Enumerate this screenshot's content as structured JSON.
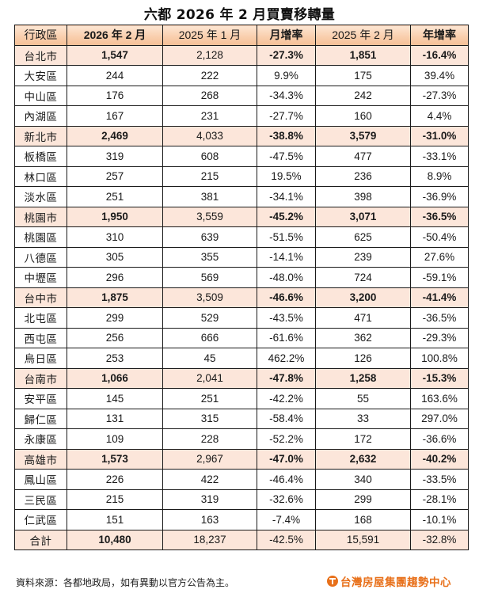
{
  "title": "六都 2026 年 2 月買賣移轉量",
  "table": {
    "headers": [
      "行政區",
      "2026 年 2 月",
      "2025 年 1 月",
      "月增率",
      "2025 年 2 月",
      "年增率"
    ],
    "rows": [
      {
        "type": "city",
        "cells": [
          "台北市",
          "1,547",
          "2,128",
          "-27.3%",
          "1,851",
          "-16.4%"
        ]
      },
      {
        "type": "district",
        "cells": [
          "大安區",
          "244",
          "222",
          "9.9%",
          "175",
          "39.4%"
        ]
      },
      {
        "type": "district",
        "cells": [
          "中山區",
          "176",
          "268",
          "-34.3%",
          "242",
          "-27.3%"
        ]
      },
      {
        "type": "district",
        "cells": [
          "內湖區",
          "167",
          "231",
          "-27.7%",
          "160",
          "4.4%"
        ]
      },
      {
        "type": "city",
        "cells": [
          "新北市",
          "2,469",
          "4,033",
          "-38.8%",
          "3,579",
          "-31.0%"
        ]
      },
      {
        "type": "district",
        "cells": [
          "板橋區",
          "319",
          "608",
          "-47.5%",
          "477",
          "-33.1%"
        ]
      },
      {
        "type": "district",
        "cells": [
          "林口區",
          "257",
          "215",
          "19.5%",
          "236",
          "8.9%"
        ]
      },
      {
        "type": "district",
        "cells": [
          "淡水區",
          "251",
          "381",
          "-34.1%",
          "398",
          "-36.9%"
        ]
      },
      {
        "type": "city",
        "cells": [
          "桃園市",
          "1,950",
          "3,559",
          "-45.2%",
          "3,071",
          "-36.5%"
        ]
      },
      {
        "type": "district",
        "cells": [
          "桃園區",
          "310",
          "639",
          "-51.5%",
          "625",
          "-50.4%"
        ]
      },
      {
        "type": "district",
        "cells": [
          "八德區",
          "305",
          "355",
          "-14.1%",
          "239",
          "27.6%"
        ]
      },
      {
        "type": "district",
        "cells": [
          "中壢區",
          "296",
          "569",
          "-48.0%",
          "724",
          "-59.1%"
        ]
      },
      {
        "type": "city",
        "cells": [
          "台中市",
          "1,875",
          "3,509",
          "-46.6%",
          "3,200",
          "-41.4%"
        ]
      },
      {
        "type": "district",
        "cells": [
          "北屯區",
          "299",
          "529",
          "-43.5%",
          "471",
          "-36.5%"
        ]
      },
      {
        "type": "district",
        "cells": [
          "西屯區",
          "256",
          "666",
          "-61.6%",
          "362",
          "-29.3%"
        ]
      },
      {
        "type": "district",
        "cells": [
          "烏日區",
          "253",
          "45",
          "462.2%",
          "126",
          "100.8%"
        ]
      },
      {
        "type": "city",
        "cells": [
          "台南市",
          "1,066",
          "2,041",
          "-47.8%",
          "1,258",
          "-15.3%"
        ]
      },
      {
        "type": "district",
        "cells": [
          "安平區",
          "145",
          "251",
          "-42.2%",
          "55",
          "163.6%"
        ]
      },
      {
        "type": "district",
        "cells": [
          "歸仁區",
          "131",
          "315",
          "-58.4%",
          "33",
          "297.0%"
        ]
      },
      {
        "type": "district",
        "cells": [
          "永康區",
          "109",
          "228",
          "-52.2%",
          "172",
          "-36.6%"
        ]
      },
      {
        "type": "city",
        "cells": [
          "高雄市",
          "1,573",
          "2,967",
          "-47.0%",
          "2,632",
          "-40.2%"
        ]
      },
      {
        "type": "district",
        "cells": [
          "鳳山區",
          "226",
          "422",
          "-46.4%",
          "340",
          "-33.5%"
        ]
      },
      {
        "type": "district",
        "cells": [
          "三民區",
          "215",
          "319",
          "-32.6%",
          "299",
          "-28.1%"
        ]
      },
      {
        "type": "district",
        "cells": [
          "仁武區",
          "151",
          "163",
          "-7.4%",
          "168",
          "-10.1%"
        ]
      },
      {
        "type": "total",
        "cells": [
          "合計",
          "10,480",
          "18,237",
          "-42.5%",
          "15,591",
          "-32.8%"
        ]
      }
    ]
  },
  "footnote": "資料來源：各都地政局，如有異動以官方公告為主。",
  "logo": {
    "icon": "taiwan-realty-logo-icon",
    "text": "台灣房屋集團趨勢中心"
  },
  "colors": {
    "header_gradient_top": "#fde6d4",
    "header_gradient_bottom": "#f5bf96",
    "city_row": "#fce6da",
    "logo_orange": "#e8701a",
    "border": "#1a1a1a"
  }
}
